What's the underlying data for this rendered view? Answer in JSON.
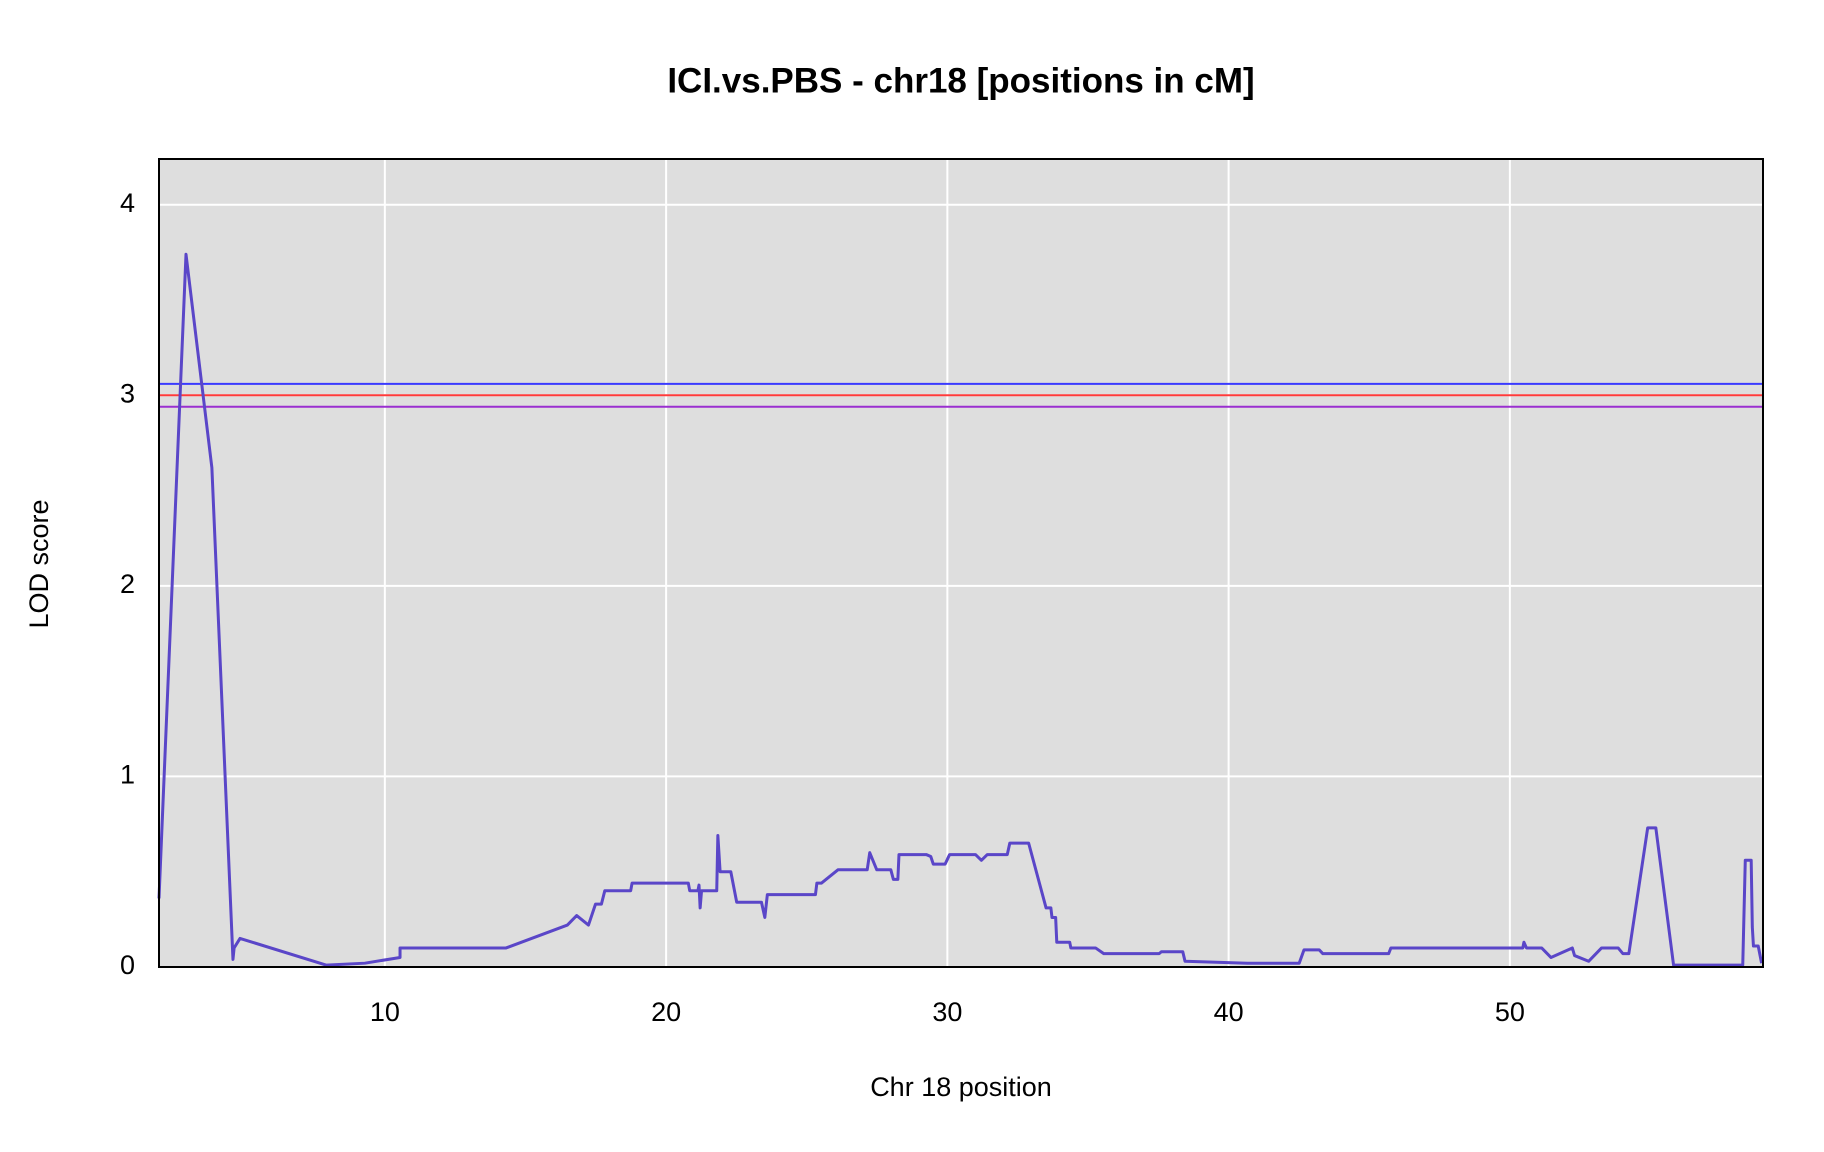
{
  "chart_data": {
    "type": "line",
    "title": "ICI.vs.PBS - chr18 [positions in cM]",
    "x_label": "Chr 18 position",
    "y_label": "LOD score",
    "xlim": [
      1.97,
      59.0
    ],
    "ylim": [
      0,
      4.24
    ],
    "xticks": [
      10,
      20,
      30,
      40,
      50
    ],
    "yticks": [
      0,
      1,
      2,
      3,
      4
    ],
    "grid": true,
    "thresholds": [
      {
        "value": 3.06,
        "color": "#3a3aff"
      },
      {
        "value": 3.0,
        "color": "#ff3a3a"
      },
      {
        "value": 2.94,
        "color": "#9a2fd0"
      }
    ],
    "x": [
      1.97,
      2.93,
      3.85,
      4.6,
      4.64,
      4.85,
      7.91,
      9.29,
      10.54,
      10.54,
      14.31,
      16.49,
      16.82,
      17.24,
      17.49,
      17.7,
      17.82,
      18.74,
      18.79,
      20.79,
      20.84,
      21.13,
      21.17,
      21.21,
      21.26,
      21.8,
      21.84,
      21.92,
      22.3,
      22.51,
      23.39,
      23.51,
      23.6,
      25.31,
      25.36,
      25.52,
      26.11,
      27.15,
      27.24,
      27.49,
      27.99,
      28.08,
      28.24,
      28.28,
      29.25,
      29.41,
      29.5,
      29.92,
      30.08,
      31.0,
      31.21,
      31.42,
      32.13,
      32.22,
      32.89,
      33.51,
      33.68,
      33.72,
      33.85,
      33.89,
      34.35,
      34.39,
      35.27,
      35.56,
      37.53,
      37.61,
      38.37,
      38.45,
      40.67,
      42.51,
      42.68,
      43.22,
      43.35,
      45.69,
      45.77,
      50.46,
      50.5,
      50.59,
      51.13,
      51.46,
      52.22,
      52.3,
      52.8,
      53.26,
      53.85,
      54.02,
      54.23,
      54.9,
      55.19,
      55.82,
      58.28,
      58.37,
      58.58,
      58.62,
      58.66,
      58.83,
      58.95
    ],
    "series": [
      {
        "color": "#5a46c8",
        "values": [
          0.36,
          3.74,
          2.62,
          0.04,
          0.1,
          0.15,
          0.01,
          0.02,
          0.05,
          0.1,
          0.1,
          0.22,
          0.27,
          0.22,
          0.33,
          0.33,
          0.4,
          0.4,
          0.44,
          0.44,
          0.4,
          0.4,
          0.43,
          0.31,
          0.4,
          0.4,
          0.69,
          0.5,
          0.5,
          0.34,
          0.34,
          0.26,
          0.38,
          0.38,
          0.44,
          0.44,
          0.51,
          0.51,
          0.6,
          0.51,
          0.51,
          0.46,
          0.46,
          0.59,
          0.59,
          0.58,
          0.54,
          0.54,
          0.59,
          0.59,
          0.56,
          0.59,
          0.59,
          0.65,
          0.65,
          0.31,
          0.31,
          0.26,
          0.26,
          0.13,
          0.13,
          0.1,
          0.1,
          0.07,
          0.07,
          0.08,
          0.08,
          0.03,
          0.02,
          0.02,
          0.09,
          0.09,
          0.07,
          0.07,
          0.1,
          0.1,
          0.13,
          0.1,
          0.1,
          0.05,
          0.1,
          0.06,
          0.03,
          0.1,
          0.1,
          0.07,
          0.07,
          0.73,
          0.73,
          0.01,
          0.01,
          0.56,
          0.56,
          0.21,
          0.11,
          0.11,
          0.02
        ]
      }
    ]
  }
}
